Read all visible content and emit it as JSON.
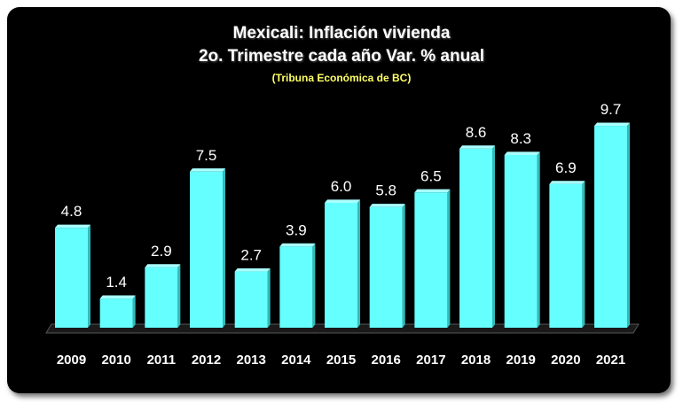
{
  "chart_data": {
    "type": "bar",
    "title": "Mexicali: Inflación vivienda",
    "subtitle": "2o. Trimestre cada año Var. % anual",
    "source": "(Tribuna Económica de BC)",
    "categories": [
      "2009",
      "2010",
      "2011",
      "2012",
      "2013",
      "2014",
      "2015",
      "2016",
      "2017",
      "2018",
      "2019",
      "2020",
      "2021"
    ],
    "values": [
      4.8,
      1.4,
      2.9,
      7.5,
      2.7,
      3.9,
      6.0,
      5.8,
      6.5,
      8.6,
      8.3,
      6.9,
      9.7
    ],
    "value_labels": [
      "4.8",
      "1.4",
      "2.9",
      "7.5",
      "2.7",
      "3.9",
      "6.0",
      "5.8",
      "6.5",
      "8.6",
      "8.3",
      "6.9",
      "9.7"
    ],
    "ylim": [
      0,
      10
    ],
    "grid": false,
    "legend": "none",
    "bar_color": "#66ffff",
    "background_color": "#000000"
  }
}
